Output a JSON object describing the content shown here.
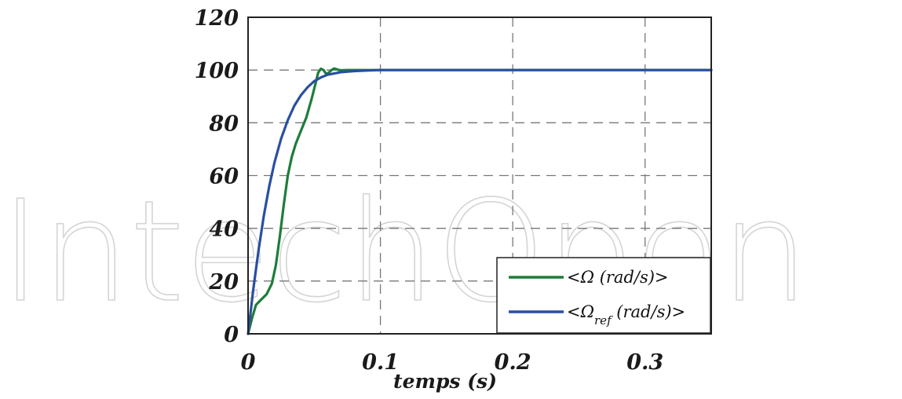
{
  "watermark": {
    "text": "IntechOpen"
  },
  "chart_data": {
    "type": "line",
    "xlabel": "temps (s)",
    "ylabel": "",
    "xlim": [
      0,
      0.35
    ],
    "ylim": [
      0,
      120
    ],
    "x_ticks": [
      0,
      0.1,
      0.2,
      0.3
    ],
    "x_tick_labels": [
      "0",
      "0.1",
      "0.2",
      "0.3"
    ],
    "y_ticks": [
      0,
      20,
      40,
      60,
      80,
      100,
      120
    ],
    "y_tick_labels": [
      "0",
      "20",
      "40",
      "60",
      "80",
      "100",
      "120"
    ],
    "grid": true,
    "legend_position": "bottom-right",
    "legend": [
      {
        "prefix": "<Ω",
        "subscript": "",
        "suffix": " (rad/s)>"
      },
      {
        "prefix": "<Ω",
        "subscript": "ref",
        "suffix": " (rad/s)>"
      }
    ],
    "series": [
      {
        "color": "#1e7d3a",
        "x": [
          0,
          0.003,
          0.006,
          0.01,
          0.014,
          0.018,
          0.021,
          0.024,
          0.027,
          0.03,
          0.033,
          0.036,
          0.04,
          0.044,
          0.048,
          0.051,
          0.053,
          0.055,
          0.057,
          0.059,
          0.061,
          0.063,
          0.065,
          0.068,
          0.07,
          0.075,
          0.085,
          0.1,
          0.15,
          0.2,
          0.25,
          0.3,
          0.35
        ],
        "y": [
          0,
          6,
          11,
          13,
          15,
          19,
          26,
          37,
          49,
          60,
          67,
          72,
          77,
          82,
          89,
          95,
          99,
          100.5,
          100,
          98.5,
          99,
          100,
          100.6,
          100.1,
          99.9,
          100,
          100,
          100,
          100,
          100,
          100,
          100,
          100
        ]
      },
      {
        "color": "#2a4fa0",
        "x": [
          0,
          0.004,
          0.008,
          0.012,
          0.016,
          0.02,
          0.025,
          0.03,
          0.035,
          0.04,
          0.045,
          0.05,
          0.055,
          0.06,
          0.07,
          0.08,
          0.09,
          0.1,
          0.15,
          0.2,
          0.25,
          0.3,
          0.35
        ],
        "y": [
          0,
          17,
          32,
          45,
          56,
          65,
          74,
          81,
          86.5,
          90.5,
          93.5,
          95.8,
          97.2,
          98.2,
          99.2,
          99.6,
          99.8,
          100,
          100,
          100,
          100,
          100,
          100
        ]
      }
    ]
  }
}
